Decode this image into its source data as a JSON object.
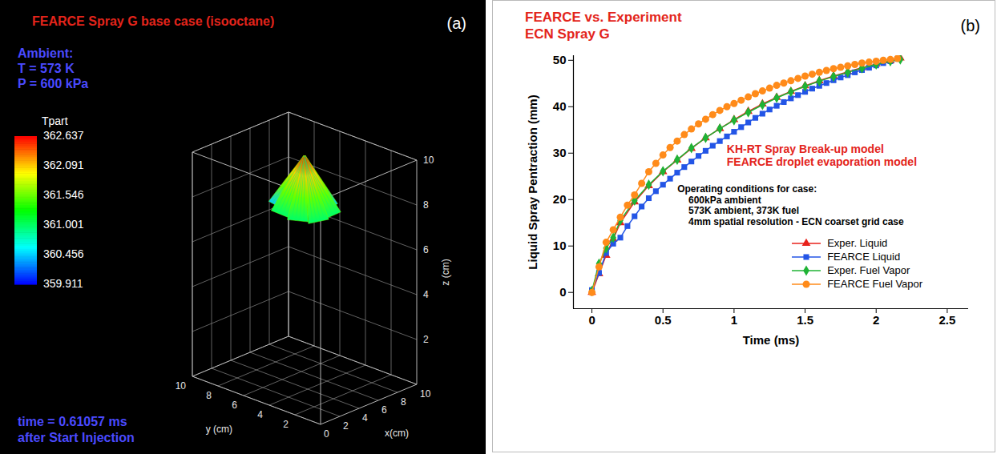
{
  "chart_data": [
    {
      "type": "3d_spray",
      "panel_label": "(a)",
      "title": "FEARCE Spray G base case (isooctane)",
      "annotations": [
        "Ambient:",
        "T = 573 K",
        "P = 600 kPa"
      ],
      "caption": [
        "time = 0.61057 ms",
        "after Start Injection"
      ],
      "xlabel": "x(cm)",
      "ylabel": "y (cm)",
      "zlabel": "z (cm)",
      "xlim": [
        0,
        10
      ],
      "ylim": [
        0,
        10
      ],
      "zlim": [
        0,
        10
      ],
      "xticks": [
        0,
        2,
        4,
        6,
        8,
        10
      ],
      "yticks": [
        2,
        4,
        6,
        8,
        10
      ],
      "zticks": [
        2,
        4,
        6,
        8,
        10
      ],
      "grid": true,
      "colorbar": {
        "label": "Tpart",
        "range": [
          359.911,
          362.637
        ],
        "ticks": [
          362.637,
          362.091,
          361.546,
          361.001,
          360.456,
          359.911
        ]
      }
    },
    {
      "type": "line",
      "panel_label": "(b)",
      "title": "FEARCE vs. Experiment",
      "subtitle": "ECN Spray G",
      "xlabel": "Time (ms)",
      "ylabel": "Liquid Spray Pentraction (mm)",
      "xlim": [
        -0.13,
        2.65
      ],
      "ylim": [
        -3.5,
        51
      ],
      "xticks": [
        0,
        0.5,
        1,
        1.5,
        2,
        2.5
      ],
      "yticks": [
        0,
        10,
        20,
        30,
        40,
        50
      ],
      "legend": "lower right",
      "model_notes": [
        "KH-RT Spray Break-up model",
        "FEARCE droplet evaporation model"
      ],
      "conditions": [
        "Operating conditions for case:",
        "600kPa ambient",
        "573K ambient, 373K fuel",
        "4mm spatial resolution - ECN coarset grid case"
      ],
      "series": [
        {
          "name": "Exper. Liquid",
          "color": "#e8221b",
          "marker": "triangle",
          "x": [
            0,
            0.05,
            0.1,
            0.15,
            0.2,
            0.3,
            0.4,
            0.5,
            0.6,
            0.7,
            0.8,
            0.9,
            1.0,
            1.1,
            1.2,
            1.3,
            1.4,
            1.5,
            1.6,
            1.7,
            1.8,
            1.9,
            2.0,
            2.1,
            2.17
          ],
          "values": [
            0,
            4,
            8,
            11.5,
            15,
            19.5,
            23,
            26,
            28.5,
            31,
            33.3,
            35.3,
            37.2,
            39,
            40.6,
            42,
            43.3,
            44.5,
            45.6,
            46.6,
            47.5,
            48.4,
            49.2,
            49.9,
            50.5
          ]
        },
        {
          "name": "FEARCE Liquid",
          "color": "#2355e6",
          "marker": "square",
          "x": [
            0,
            0.05,
            0.1,
            0.15,
            0.2,
            0.25,
            0.3,
            0.35,
            0.4,
            0.45,
            0.5,
            0.55,
            0.6,
            0.65,
            0.7,
            0.75,
            0.8,
            0.85,
            0.9,
            0.95,
            1.0,
            1.05,
            1.1,
            1.15,
            1.2,
            1.25,
            1.3,
            1.35,
            1.4,
            1.45,
            1.5,
            1.55,
            1.6,
            1.65,
            1.7,
            1.75,
            1.8,
            1.85,
            1.9,
            1.95,
            2.0,
            2.05,
            2.1,
            2.15
          ],
          "values": [
            0.5,
            4.2,
            8.5,
            10.5,
            11.8,
            14.3,
            16.4,
            18.5,
            20.3,
            21.8,
            23.2,
            24.5,
            25.8,
            27.0,
            28.2,
            29.4,
            30.5,
            31.6,
            32.6,
            33.6,
            34.6,
            35.6,
            36.6,
            37.6,
            38.5,
            39.4,
            40.2,
            41.0,
            41.8,
            42.5,
            43.2,
            43.9,
            44.5,
            45.1,
            45.7,
            46.3,
            46.8,
            47.4,
            47.9,
            48.4,
            48.9,
            49.4,
            49.8,
            50.3
          ]
        },
        {
          "name": "Exper. Fuel Vapor",
          "color": "#1fb335",
          "marker": "diamond",
          "x": [
            0,
            0.05,
            0.1,
            0.15,
            0.2,
            0.3,
            0.4,
            0.5,
            0.6,
            0.7,
            0.8,
            0.9,
            1.0,
            1.1,
            1.2,
            1.3,
            1.4,
            1.5,
            1.6,
            1.7,
            1.8,
            1.9,
            2.0,
            2.1,
            2.17
          ],
          "values": [
            0.3,
            6.2,
            9.5,
            11.8,
            15.5,
            19.8,
            23.2,
            26.1,
            28.6,
            31.1,
            33.3,
            35.3,
            37.1,
            38.8,
            40.4,
            41.9,
            43.2,
            44.4,
            45.5,
            46.5,
            47.4,
            48.3,
            49.1,
            49.8,
            50.2
          ]
        },
        {
          "name": "FEARCE Fuel Vapor",
          "color": "#ff8b1a",
          "marker": "circle",
          "x": [
            0,
            0.05,
            0.1,
            0.15,
            0.2,
            0.25,
            0.3,
            0.35,
            0.4,
            0.45,
            0.5,
            0.55,
            0.6,
            0.65,
            0.7,
            0.75,
            0.8,
            0.85,
            0.9,
            0.95,
            1.0,
            1.05,
            1.1,
            1.15,
            1.2,
            1.25,
            1.3,
            1.35,
            1.4,
            1.45,
            1.5,
            1.55,
            1.6,
            1.65,
            1.7,
            1.75,
            1.8,
            1.85,
            1.9,
            1.95,
            2.0,
            2.05,
            2.1,
            2.15
          ],
          "values": [
            0,
            5.5,
            10.8,
            13.5,
            16.2,
            18.8,
            21,
            23.5,
            26,
            27.8,
            29.6,
            31.2,
            32.6,
            34,
            35.2,
            36.3,
            37.3,
            38.3,
            39.2,
            40,
            40.7,
            41.4,
            42.1,
            42.8,
            43.4,
            44,
            44.6,
            45.1,
            45.6,
            46.1,
            46.6,
            47,
            47.4,
            47.8,
            48.2,
            48.5,
            48.8,
            49.1,
            49.4,
            49.6,
            49.8,
            50,
            50.2,
            50.4
          ]
        }
      ]
    }
  ]
}
